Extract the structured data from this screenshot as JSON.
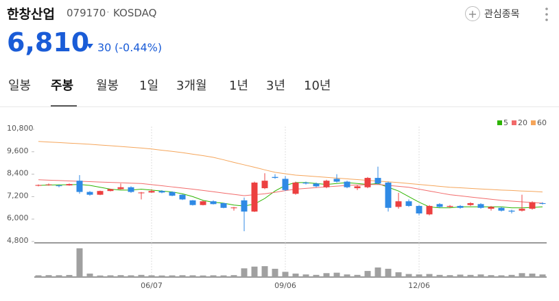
{
  "header": {
    "title": "한창산업",
    "code": "079170",
    "market": "KOSDAQ",
    "watch_button": "관심종목",
    "price": "6,810",
    "change": "30",
    "change_pct": "(-0.44%)"
  },
  "tabs": {
    "items": [
      "일봉",
      "주봉",
      "월봉",
      "1일",
      "3개월",
      "1년",
      "3년",
      "10년"
    ],
    "active": 1
  },
  "chart_data": {
    "type": "candlestick",
    "categories": [
      null,
      null,
      null,
      null,
      null,
      null,
      null,
      null,
      null,
      null,
      null,
      "06/07",
      null,
      null,
      null,
      null,
      null,
      null,
      null,
      null,
      null,
      null,
      null,
      null,
      "09/06",
      null,
      null,
      null,
      null,
      null,
      null,
      null,
      null,
      null,
      null,
      null,
      null,
      "12/06",
      null,
      null,
      null,
      null,
      null,
      null,
      null,
      null,
      null,
      null,
      null,
      null
    ],
    "open": [
      7780,
      7820,
      7800,
      7800,
      8050,
      7450,
      7300,
      7500,
      7600,
      7700,
      7380,
      7420,
      7500,
      7450,
      7300,
      7000,
      6750,
      6950,
      6850,
      6580,
      7000,
      6400,
      7650,
      8250,
      8150,
      7350,
      7950,
      7900,
      7700,
      8150,
      8000,
      7650,
      7700,
      8200,
      7950,
      6650,
      6950,
      6700,
      6250,
      6800,
      6650,
      6700,
      6750,
      6800,
      6550,
      6600,
      6450,
      6450,
      6550,
      6850
    ],
    "high": [
      7850,
      7900,
      7830,
      7900,
      8350,
      7500,
      7520,
      7620,
      7900,
      7750,
      7450,
      7600,
      7550,
      7480,
      7320,
      7020,
      6980,
      7000,
      6870,
      6650,
      7150,
      8000,
      8450,
      8400,
      8300,
      8000,
      8000,
      7950,
      8100,
      8400,
      8050,
      7800,
      8250,
      8800,
      8000,
      7400,
      7050,
      6750,
      6750,
      6850,
      6750,
      6750,
      6900,
      6850,
      6700,
      6650,
      6500,
      7300,
      6950,
      6900
    ],
    "low": [
      7750,
      7780,
      7700,
      7780,
      7350,
      7250,
      7280,
      7480,
      7580,
      7400,
      7050,
      7400,
      7380,
      7220,
      7020,
      6720,
      6730,
      6780,
      6580,
      6450,
      5350,
      6380,
      7600,
      8150,
      7500,
      7300,
      7850,
      7700,
      7650,
      7950,
      7650,
      7550,
      7650,
      7850,
      6400,
      6550,
      6650,
      6200,
      6200,
      6600,
      6600,
      6550,
      6700,
      6550,
      6450,
      6400,
      6300,
      6400,
      6500,
      6780
    ],
    "close": [
      7820,
      7850,
      7760,
      7870,
      7450,
      7300,
      7500,
      7600,
      7700,
      7450,
      7420,
      7500,
      7420,
      7250,
      7050,
      6750,
      6950,
      6800,
      6600,
      6620,
      6400,
      7950,
      8050,
      8200,
      7550,
      7950,
      7900,
      7750,
      8050,
      8000,
      7700,
      7750,
      8200,
      7900,
      6600,
      6950,
      6700,
      6300,
      6700,
      6650,
      6700,
      6600,
      6850,
      6600,
      6650,
      6450,
      6400,
      6550,
      6900,
      6810
    ],
    "up_color": "#ec4040",
    "down_color": "#2f8ae5",
    "series": [
      {
        "name": "5",
        "color": "#2db400",
        "values": [
          7800,
          7820,
          7830,
          7830,
          7850,
          7800,
          7700,
          7600,
          7550,
          7550,
          7600,
          7550,
          7500,
          7450,
          7350,
          7200,
          7000,
          6900,
          6850,
          6750,
          6700,
          6800,
          7100,
          7500,
          7800,
          7950,
          7950,
          7900,
          7850,
          7900,
          7950,
          7900,
          7850,
          7900,
          7700,
          7500,
          7200,
          6900,
          6650,
          6600,
          6600,
          6650,
          6650,
          6650,
          6650,
          6650,
          6600,
          6600,
          6620,
          6650
        ]
      },
      {
        "name": "20",
        "color": "#f26a6a",
        "values": [
          8100,
          8080,
          8060,
          8040,
          8020,
          8000,
          7980,
          7960,
          7940,
          7920,
          7900,
          7840,
          7780,
          7720,
          7660,
          7600,
          7530,
          7460,
          7390,
          7320,
          7250,
          7300,
          7350,
          7430,
          7520,
          7600,
          7640,
          7680,
          7720,
          7760,
          7800,
          7820,
          7840,
          7850,
          7800,
          7750,
          7700,
          7600,
          7500,
          7400,
          7300,
          7240,
          7180,
          7120,
          7060,
          7000,
          6960,
          6920,
          6880,
          6850
        ]
      },
      {
        "name": "60",
        "color": "#f5a55a",
        "values": [
          10150,
          10120,
          10090,
          10060,
          10030,
          10000,
          9960,
          9920,
          9880,
          9840,
          9800,
          9750,
          9680,
          9620,
          9550,
          9470,
          9390,
          9300,
          9170,
          9030,
          8900,
          8770,
          8630,
          8500,
          8420,
          8350,
          8310,
          8270,
          8230,
          8190,
          8150,
          8110,
          8070,
          8030,
          7990,
          7950,
          7900,
          7850,
          7800,
          7750,
          7700,
          7670,
          7640,
          7610,
          7580,
          7550,
          7530,
          7500,
          7480,
          7450
        ]
      }
    ],
    "volume": {
      "color": "#a0a0a0",
      "values": [
        20,
        22,
        21,
        24,
        330,
        40,
        18,
        20,
        22,
        20,
        25,
        20,
        18,
        19,
        21,
        20,
        18,
        20,
        19,
        22,
        100,
        120,
        125,
        95,
        60,
        40,
        30,
        25,
        45,
        50,
        30,
        25,
        70,
        110,
        95,
        55,
        35,
        30,
        35,
        25,
        22,
        28,
        25,
        30,
        22,
        20,
        25,
        45,
        40,
        30
      ]
    },
    "ylim": [
      4800,
      10800
    ],
    "yticks": [
      {
        "value": 10800,
        "label": "10,800"
      },
      {
        "value": 9600,
        "label": "9,600"
      },
      {
        "value": 8400,
        "label": "8,400"
      },
      {
        "value": 7200,
        "label": "7,200"
      },
      {
        "value": 6000,
        "label": "6,000"
      },
      {
        "value": 4800,
        "label": "4,800"
      }
    ],
    "legend": "top-right"
  }
}
